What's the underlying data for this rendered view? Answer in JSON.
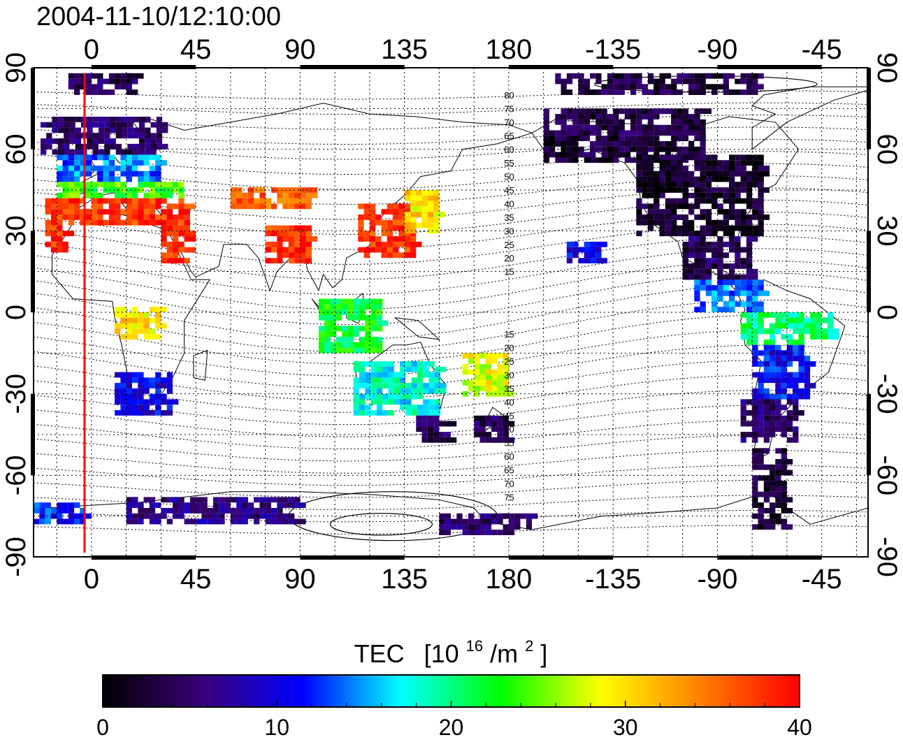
{
  "header": {
    "timestamp": "2004-11-10/12:10:00"
  },
  "map": {
    "projection": "equirectangular",
    "lon_min": -25,
    "lon_max": 335,
    "lat_min": -90,
    "lat_max": 90,
    "marker_longitude": -3,
    "marker_color": "#ff0000",
    "lon_ticks": [
      {
        "lon": 0,
        "label": "0"
      },
      {
        "lon": 45,
        "label": "45"
      },
      {
        "lon": 90,
        "label": "90"
      },
      {
        "lon": 135,
        "label": "135"
      },
      {
        "lon": 180,
        "label": "180"
      },
      {
        "lon": 225,
        "label": "-135"
      },
      {
        "lon": 270,
        "label": "-90"
      },
      {
        "lon": 315,
        "label": "-45"
      }
    ],
    "lat_ticks": [
      {
        "lat": 90,
        "label": "90"
      },
      {
        "lat": 60,
        "label": "60"
      },
      {
        "lat": 30,
        "label": "30"
      },
      {
        "lat": 0,
        "label": "0"
      },
      {
        "lat": -30,
        "label": "-30"
      },
      {
        "lat": -60,
        "label": "-60"
      },
      {
        "lat": -90,
        "label": "-90"
      }
    ],
    "contour_labels": [
      "80",
      "75",
      "70",
      "65",
      "60",
      "55",
      "50",
      "45",
      "40",
      "35",
      "30",
      "25",
      "20",
      "15",
      "15",
      "20",
      "25",
      "30",
      "35",
      "40",
      "45",
      "50",
      "55",
      "60",
      "65",
      "70",
      "75"
    ]
  },
  "colorbar": {
    "title_main": "TEC",
    "title_unit_a": "[10",
    "title_unit_exp": "16",
    "title_unit_b": "/m",
    "title_unit_exp2": "2",
    "title_unit_c": "]",
    "min": 0,
    "max": 40,
    "ticks": [
      {
        "value": 0,
        "label": "0"
      },
      {
        "value": 10,
        "label": "10"
      },
      {
        "value": 20,
        "label": "20"
      },
      {
        "value": 30,
        "label": "30"
      },
      {
        "value": 40,
        "label": "40"
      }
    ],
    "stops": [
      "#000000",
      "#3a0078",
      "#0000ff",
      "#00ffff",
      "#00ff00",
      "#ffff00",
      "#ff8000",
      "#ff0000"
    ]
  },
  "tec_regions": [
    {
      "lon": [
        -22,
        30
      ],
      "lat": [
        58,
        72
      ],
      "value": 5
    },
    {
      "lon": [
        -15,
        30
      ],
      "lat": [
        48,
        58
      ],
      "value": 14
    },
    {
      "lon": [
        -15,
        40
      ],
      "lat": [
        42,
        48
      ],
      "value": 24
    },
    {
      "lon": [
        -20,
        42
      ],
      "lat": [
        32,
        42
      ],
      "value": 38
    },
    {
      "lon": [
        -20,
        -10
      ],
      "lat": [
        22,
        32
      ],
      "value": 38
    },
    {
      "lon": [
        30,
        42
      ],
      "lat": [
        18,
        32
      ],
      "value": 38
    },
    {
      "lon": [
        60,
        95
      ],
      "lat": [
        38,
        46
      ],
      "value": 36
    },
    {
      "lon": [
        75,
        95
      ],
      "lat": [
        18,
        32
      ],
      "value": 38
    },
    {
      "lon": [
        115,
        140
      ],
      "lat": [
        20,
        40
      ],
      "value": 38
    },
    {
      "lon": [
        135,
        148
      ],
      "lat": [
        30,
        45
      ],
      "value": 30
    },
    {
      "lon": [
        98,
        125
      ],
      "lat": [
        -15,
        5
      ],
      "value": 22
    },
    {
      "lon": [
        10,
        30
      ],
      "lat": [
        -10,
        2
      ],
      "value": 30
    },
    {
      "lon": [
        10,
        35
      ],
      "lat": [
        -38,
        -22
      ],
      "value": 10
    },
    {
      "lon": [
        113,
        150
      ],
      "lat": [
        -38,
        -18
      ],
      "value": 18
    },
    {
      "lon": [
        160,
        178
      ],
      "lat": [
        -30,
        -15
      ],
      "value": 28
    },
    {
      "lon": [
        140,
        155
      ],
      "lat": [
        -48,
        -38
      ],
      "value": 4
    },
    {
      "lon": [
        165,
        180
      ],
      "lat": [
        -48,
        -38
      ],
      "value": 4
    },
    {
      "lon": [
        195,
        265
      ],
      "lat": [
        55,
        75
      ],
      "value": 3
    },
    {
      "lon": [
        235,
        290
      ],
      "lat": [
        28,
        58
      ],
      "value": 2
    },
    {
      "lon": [
        255,
        285
      ],
      "lat": [
        12,
        28
      ],
      "value": 4
    },
    {
      "lon": [
        260,
        290
      ],
      "lat": [
        0,
        12
      ],
      "value": 14
    },
    {
      "lon": [
        280,
        318
      ],
      "lat": [
        -12,
        0
      ],
      "value": 20
    },
    {
      "lon": [
        285,
        310
      ],
      "lat": [
        -32,
        -12
      ],
      "value": 11
    },
    {
      "lon": [
        280,
        305
      ],
      "lat": [
        -48,
        -32
      ],
      "value": 5
    },
    {
      "lon": [
        285,
        300
      ],
      "lat": [
        -80,
        -50
      ],
      "value": 3
    },
    {
      "lon": [
        205,
        220
      ],
      "lat": [
        18,
        26
      ],
      "value": 10
    },
    {
      "lon": [
        15,
        90
      ],
      "lat": [
        -78,
        -68
      ],
      "value": 6
    },
    {
      "lon": [
        150,
        190
      ],
      "lat": [
        -82,
        -74
      ],
      "value": 5
    },
    {
      "lon": [
        200,
        290
      ],
      "lat": [
        80,
        88
      ],
      "value": 3
    },
    {
      "lon": [
        -10,
        20
      ],
      "lat": [
        80,
        88
      ],
      "value": 4
    },
    {
      "lon": [
        -25,
        0
      ],
      "lat": [
        -78,
        -70
      ],
      "value": 12
    }
  ]
}
